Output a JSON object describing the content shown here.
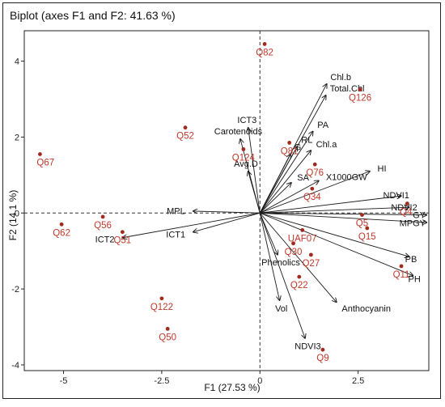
{
  "chart_data": {
    "type": "scatter",
    "subtype": "biplot",
    "title": "Biplot (axes F1 and F2: 41.63 %)",
    "xlabel": "F1 (27.53 %)",
    "ylabel": "F2 (14.1 %)",
    "xlim": [
      -6,
      4.3
    ],
    "ylim": [
      -4.15,
      4.8
    ],
    "xticks": [
      -5,
      -2.5,
      0,
      2.5
    ],
    "xtick_labels": [
      "-5",
      "-2.5",
      "0",
      "2.5"
    ],
    "yticks": [
      -4,
      -2,
      0,
      2,
      4
    ],
    "ytick_labels": [
      "-4",
      "-2",
      "0",
      "2",
      "4"
    ],
    "grid": false,
    "reference_lines": "dashed at x=0 and y=0",
    "colors": {
      "points": "#a12a1c",
      "observation_labels": "#c0392b",
      "vectors": "#1a1a1a",
      "axes": "#222222"
    },
    "observations": [
      {
        "label": "Q82",
        "x": 0.12,
        "y": 4.45
      },
      {
        "label": "Q126",
        "x": 2.55,
        "y": 3.25
      },
      {
        "label": "Q52",
        "x": -1.9,
        "y": 2.25
      },
      {
        "label": "Q81",
        "x": 0.75,
        "y": 1.85
      },
      {
        "label": "Q67",
        "x": -5.6,
        "y": 1.55
      },
      {
        "label": "Q124",
        "x": -0.42,
        "y": 1.68
      },
      {
        "label": "Q76",
        "x": 1.4,
        "y": 1.28
      },
      {
        "label": "Q34",
        "x": 1.33,
        "y": 0.64
      },
      {
        "label": "Q5",
        "x": 2.6,
        "y": -0.05
      },
      {
        "label": "Q4",
        "x": 3.75,
        "y": 0.25
      },
      {
        "label": "Q15",
        "x": 2.73,
        "y": -0.4
      },
      {
        "label": "Q11",
        "x": 3.6,
        "y": -1.4
      },
      {
        "label": "Q56",
        "x": -4.0,
        "y": -0.1
      },
      {
        "label": "Q62",
        "x": -5.05,
        "y": -0.3
      },
      {
        "label": "Q51",
        "x": -3.5,
        "y": -0.5
      },
      {
        "label": "UAF07",
        "x": 1.08,
        "y": -0.45
      },
      {
        "label": "Q30",
        "x": 0.85,
        "y": -0.8
      },
      {
        "label": "Q27",
        "x": 1.3,
        "y": -1.1
      },
      {
        "label": "Q22",
        "x": 1.0,
        "y": -1.68
      },
      {
        "label": "Q122",
        "x": -2.5,
        "y": -2.25
      },
      {
        "label": "Q50",
        "x": -2.35,
        "y": -3.05
      },
      {
        "label": "Q9",
        "x": 1.6,
        "y": -3.6
      }
    ],
    "variables": [
      {
        "label": "Chl.b",
        "x": 1.7,
        "y": 3.4
      },
      {
        "label": "Total.Chl",
        "x": 1.68,
        "y": 3.1
      },
      {
        "label": "ICT3",
        "x": -0.3,
        "y": 2.25
      },
      {
        "label": "Carotenoids",
        "x": -0.5,
        "y": 1.95
      },
      {
        "label": "G",
        "x": 0.78,
        "y": 1.55
      },
      {
        "label": "RL",
        "x": 0.95,
        "y": 1.75
      },
      {
        "label": "PA",
        "x": 1.35,
        "y": 2.15
      },
      {
        "label": "Chl.a",
        "x": 1.3,
        "y": 1.65
      },
      {
        "label": "Avg.D",
        "x": -0.3,
        "y": 1.1
      },
      {
        "label": "SA",
        "x": 0.8,
        "y": 0.8
      },
      {
        "label": "X1000GW",
        "x": 1.5,
        "y": 0.85
      },
      {
        "label": "HI",
        "x": 2.8,
        "y": 1.1
      },
      {
        "label": "NDVI1",
        "x": 3.6,
        "y": 0.45
      },
      {
        "label": "NDVI2",
        "x": 3.8,
        "y": 0.15
      },
      {
        "label": "GY",
        "x": 4.25,
        "y": -0.05
      },
      {
        "label": "MPGY",
        "x": 4.25,
        "y": -0.25
      },
      {
        "label": "PB",
        "x": 3.8,
        "y": -1.15
      },
      {
        "label": "PH",
        "x": 3.9,
        "y": -1.65
      },
      {
        "label": "MPL",
        "x": -1.7,
        "y": 0.05
      },
      {
        "label": "ICT1",
        "x": -1.7,
        "y": -0.5
      },
      {
        "label": "ICT2",
        "x": -3.5,
        "y": -0.65
      },
      {
        "label": "Phenolics",
        "x": 0.45,
        "y": -1.1
      },
      {
        "label": "Anthocyanin",
        "x": 1.95,
        "y": -2.35
      },
      {
        "label": "Vol",
        "x": 0.5,
        "y": -2.3
      },
      {
        "label": "NDVI3",
        "x": 1.15,
        "y": -3.3
      }
    ]
  }
}
